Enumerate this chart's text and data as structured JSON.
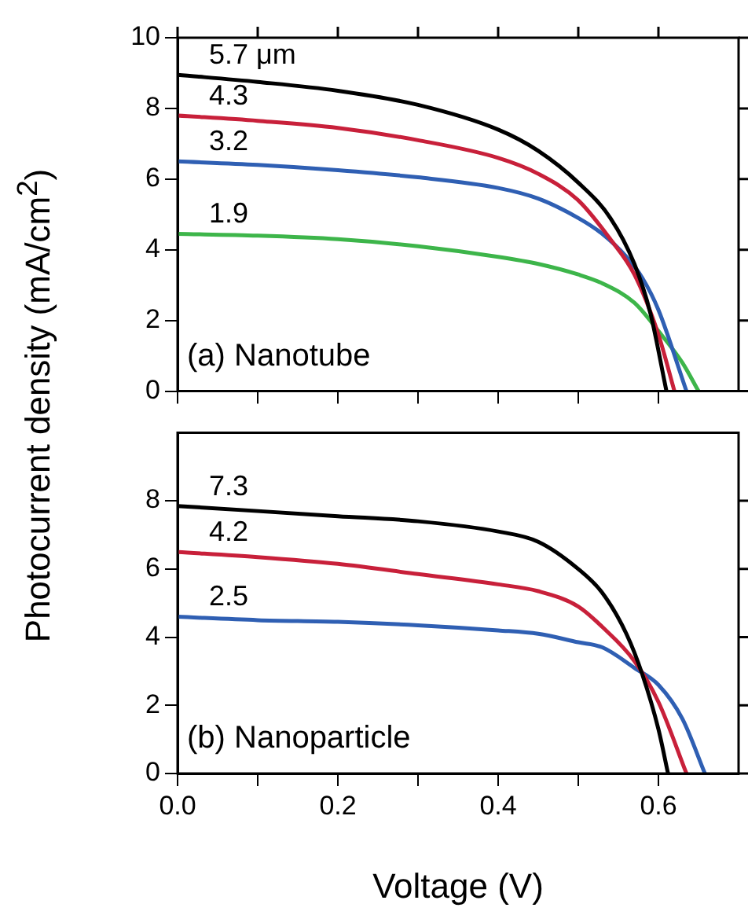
{
  "chart_data": [
    {
      "type": "line",
      "ylabel": "Photocurrent density (mA/cm$^{2}$)",
      "annotations": [
        "(a) Nanotube"
      ],
      "xlim": [
        0,
        0.7
      ],
      "ylim": [
        0,
        10
      ],
      "tick_labels": "y",
      "xticks": [
        {
          "value": 0,
          "label": null
        },
        {
          "value": 0.1,
          "label": null
        },
        {
          "value": 0.2,
          "label": null
        },
        {
          "value": 0.3,
          "label": null
        },
        {
          "value": 0.4,
          "label": null
        },
        {
          "value": 0.5,
          "label": null
        },
        {
          "value": 0.6,
          "label": null
        }
      ],
      "yticks": [
        0,
        2,
        4,
        6,
        8,
        10
      ],
      "series": [
        {
          "name": "5.7 μm",
          "color": "#000000",
          "x": [
            0,
            0.1,
            0.2,
            0.3,
            0.4,
            0.45,
            0.5,
            0.54,
            0.57,
            0.59,
            0.61
          ],
          "values": [
            8.95,
            8.75,
            8.5,
            8.1,
            7.4,
            6.8,
            5.9,
            4.9,
            3.6,
            2.2,
            0
          ]
        },
        {
          "name": "4.3",
          "color": "#c8203a",
          "x": [
            0,
            0.1,
            0.2,
            0.3,
            0.4,
            0.45,
            0.5,
            0.54,
            0.57,
            0.6,
            0.62
          ],
          "values": [
            7.8,
            7.65,
            7.45,
            7.1,
            6.6,
            6.15,
            5.4,
            4.3,
            3.3,
            1.6,
            0
          ]
        },
        {
          "name": "3.2",
          "color": "#2f5fb3",
          "x": [
            0,
            0.1,
            0.2,
            0.3,
            0.4,
            0.45,
            0.5,
            0.53,
            0.56,
            0.58,
            0.6,
            0.635
          ],
          "values": [
            6.5,
            6.4,
            6.25,
            6.05,
            5.75,
            5.45,
            4.9,
            4.45,
            3.8,
            3.2,
            2.3,
            0
          ]
        },
        {
          "name": "1.9",
          "color": "#3db54a",
          "x": [
            0,
            0.1,
            0.2,
            0.3,
            0.4,
            0.45,
            0.5,
            0.53,
            0.57,
            0.6,
            0.63,
            0.65
          ],
          "values": [
            4.45,
            4.4,
            4.3,
            4.1,
            3.8,
            3.6,
            3.3,
            3.05,
            2.5,
            1.7,
            0.8,
            0
          ]
        }
      ]
    },
    {
      "type": "line",
      "xlabel": "Voltage (V)",
      "annotations": [
        "(b) Nanoparticle"
      ],
      "xlim": [
        0,
        0.7
      ],
      "ylim": [
        0,
        10
      ],
      "xticks": [
        {
          "value": 0,
          "label": "0.0"
        },
        {
          "value": 0.1,
          "label": null
        },
        {
          "value": 0.2,
          "label": "0.2"
        },
        {
          "value": 0.3,
          "label": null
        },
        {
          "value": 0.4,
          "label": "0.4"
        },
        {
          "value": 0.5,
          "label": null
        },
        {
          "value": 0.6,
          "label": "0.6"
        }
      ],
      "yticks": [
        0,
        2,
        4,
        6,
        8
      ],
      "series": [
        {
          "name": "7.3",
          "color": "#000000",
          "x": [
            0,
            0.1,
            0.2,
            0.3,
            0.4,
            0.45,
            0.5,
            0.53,
            0.56,
            0.58,
            0.6,
            0.612
          ],
          "values": [
            7.85,
            7.7,
            7.55,
            7.4,
            7.1,
            6.8,
            6.0,
            5.3,
            4.1,
            2.9,
            1.3,
            0
          ]
        },
        {
          "name": "4.2",
          "color": "#c8203a",
          "x": [
            0,
            0.1,
            0.2,
            0.3,
            0.4,
            0.45,
            0.5,
            0.53,
            0.57,
            0.6,
            0.635
          ],
          "values": [
            6.5,
            6.35,
            6.15,
            5.85,
            5.55,
            5.35,
            4.9,
            4.3,
            3.3,
            2.1,
            0
          ]
        },
        {
          "name": "2.5",
          "color": "#2f5fb3",
          "x": [
            0,
            0.1,
            0.2,
            0.3,
            0.4,
            0.45,
            0.5,
            0.53,
            0.57,
            0.6,
            0.63,
            0.658
          ],
          "values": [
            4.6,
            4.5,
            4.45,
            4.35,
            4.2,
            4.1,
            3.85,
            3.7,
            3.1,
            2.6,
            1.6,
            0
          ]
        }
      ]
    }
  ]
}
